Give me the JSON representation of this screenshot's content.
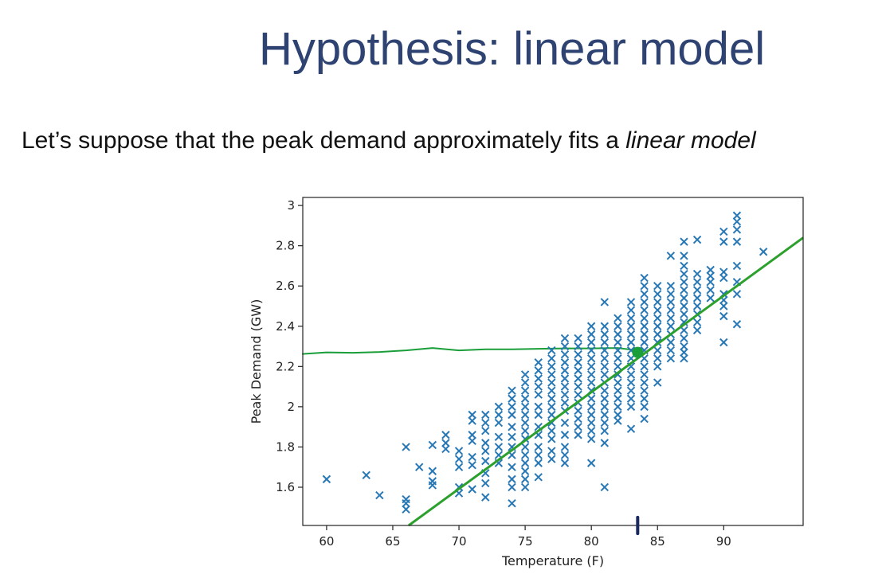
{
  "slide": {
    "title": "Hypothesis: linear model",
    "body_prefix": "Let’s suppose that the peak demand approximately fits a ",
    "body_emphasis": "linear model"
  },
  "chart_data": {
    "type": "scatter",
    "xlabel": "Temperature (F)",
    "ylabel": "Peak Demand (GW)",
    "xlim": [
      58.2,
      96.0
    ],
    "ylim": [
      1.41,
      3.04
    ],
    "xticks": [
      60,
      65,
      70,
      75,
      80,
      85,
      90
    ],
    "yticks": [
      1.6,
      1.8,
      2.0,
      2.2,
      2.4,
      2.6,
      2.8,
      3.0
    ],
    "grid": false,
    "marker": "x",
    "colors": {
      "points": "#2878b5",
      "fit": "#2ca02c",
      "annotation": "#1a9e3a",
      "pen": "#1a2a5e"
    },
    "points": [
      [
        60,
        1.64
      ],
      [
        63,
        1.66
      ],
      [
        64,
        1.56
      ],
      [
        66,
        1.8
      ],
      [
        66,
        1.54
      ],
      [
        66,
        1.52
      ],
      [
        66,
        1.49
      ],
      [
        67,
        1.7
      ],
      [
        68,
        1.81
      ],
      [
        68,
        1.68
      ],
      [
        68,
        1.63
      ],
      [
        68,
        1.61
      ],
      [
        69,
        1.86
      ],
      [
        69,
        1.82
      ],
      [
        69,
        1.79
      ],
      [
        70,
        1.78
      ],
      [
        70,
        1.74
      ],
      [
        70,
        1.7
      ],
      [
        70,
        1.6
      ],
      [
        70,
        1.57
      ],
      [
        71,
        1.96
      ],
      [
        71,
        1.93
      ],
      [
        71,
        1.86
      ],
      [
        71,
        1.83
      ],
      [
        71,
        1.75
      ],
      [
        71,
        1.71
      ],
      [
        71,
        1.59
      ],
      [
        72,
        1.96
      ],
      [
        72,
        1.92
      ],
      [
        72,
        1.88
      ],
      [
        72,
        1.82
      ],
      [
        72,
        1.78
      ],
      [
        72,
        1.73
      ],
      [
        72,
        1.67
      ],
      [
        72,
        1.62
      ],
      [
        72,
        1.55
      ],
      [
        73,
        2.0
      ],
      [
        73,
        1.96
      ],
      [
        73,
        1.92
      ],
      [
        73,
        1.85
      ],
      [
        73,
        1.8
      ],
      [
        73,
        1.76
      ],
      [
        73,
        1.72
      ],
      [
        74,
        2.08
      ],
      [
        74,
        2.04
      ],
      [
        74,
        2.0
      ],
      [
        74,
        1.96
      ],
      [
        74,
        1.9
      ],
      [
        74,
        1.85
      ],
      [
        74,
        1.8
      ],
      [
        74,
        1.76
      ],
      [
        74,
        1.7
      ],
      [
        74,
        1.64
      ],
      [
        74,
        1.6
      ],
      [
        74,
        1.52
      ],
      [
        75,
        2.16
      ],
      [
        75,
        2.12
      ],
      [
        75,
        2.08
      ],
      [
        75,
        2.04
      ],
      [
        75,
        2.0
      ],
      [
        75,
        1.96
      ],
      [
        75,
        1.92
      ],
      [
        75,
        1.88
      ],
      [
        75,
        1.84
      ],
      [
        75,
        1.8
      ],
      [
        75,
        1.76
      ],
      [
        75,
        1.72
      ],
      [
        75,
        1.68
      ],
      [
        75,
        1.64
      ],
      [
        75,
        1.6
      ],
      [
        76,
        2.22
      ],
      [
        76,
        2.18
      ],
      [
        76,
        2.14
      ],
      [
        76,
        2.1
      ],
      [
        76,
        2.06
      ],
      [
        76,
        2.0
      ],
      [
        76,
        1.96
      ],
      [
        76,
        1.9
      ],
      [
        76,
        1.86
      ],
      [
        76,
        1.8
      ],
      [
        76,
        1.76
      ],
      [
        76,
        1.72
      ],
      [
        76,
        1.65
      ],
      [
        77,
        2.28
      ],
      [
        77,
        2.24
      ],
      [
        77,
        2.2
      ],
      [
        77,
        2.16
      ],
      [
        77,
        2.12
      ],
      [
        77,
        2.08
      ],
      [
        77,
        2.04
      ],
      [
        77,
        2.0
      ],
      [
        77,
        1.96
      ],
      [
        77,
        1.92
      ],
      [
        77,
        1.88
      ],
      [
        77,
        1.84
      ],
      [
        77,
        1.78
      ],
      [
        77,
        1.74
      ],
      [
        78,
        2.34
      ],
      [
        78,
        2.3
      ],
      [
        78,
        2.26
      ],
      [
        78,
        2.22
      ],
      [
        78,
        2.18
      ],
      [
        78,
        2.14
      ],
      [
        78,
        2.1
      ],
      [
        78,
        2.06
      ],
      [
        78,
        2.02
      ],
      [
        78,
        1.98
      ],
      [
        78,
        1.92
      ],
      [
        78,
        1.86
      ],
      [
        78,
        1.8
      ],
      [
        78,
        1.76
      ],
      [
        78,
        1.72
      ],
      [
        79,
        2.34
      ],
      [
        79,
        2.3
      ],
      [
        79,
        2.26
      ],
      [
        79,
        2.22
      ],
      [
        79,
        2.18
      ],
      [
        79,
        2.14
      ],
      [
        79,
        2.1
      ],
      [
        79,
        2.06
      ],
      [
        79,
        2.02
      ],
      [
        79,
        1.98
      ],
      [
        79,
        1.94
      ],
      [
        79,
        1.9
      ],
      [
        79,
        1.86
      ],
      [
        80,
        2.4
      ],
      [
        80,
        2.36
      ],
      [
        80,
        2.32
      ],
      [
        80,
        2.28
      ],
      [
        80,
        2.24
      ],
      [
        80,
        2.2
      ],
      [
        80,
        2.16
      ],
      [
        80,
        2.12
      ],
      [
        80,
        2.08
      ],
      [
        80,
        2.04
      ],
      [
        80,
        2.0
      ],
      [
        80,
        1.96
      ],
      [
        80,
        1.92
      ],
      [
        80,
        1.88
      ],
      [
        80,
        1.84
      ],
      [
        80,
        1.72
      ],
      [
        81,
        2.52
      ],
      [
        81,
        2.4
      ],
      [
        81,
        2.36
      ],
      [
        81,
        2.32
      ],
      [
        81,
        2.28
      ],
      [
        81,
        2.24
      ],
      [
        81,
        2.2
      ],
      [
        81,
        2.16
      ],
      [
        81,
        2.12
      ],
      [
        81,
        2.08
      ],
      [
        81,
        2.04
      ],
      [
        81,
        2.0
      ],
      [
        81,
        1.96
      ],
      [
        81,
        1.92
      ],
      [
        81,
        1.88
      ],
      [
        81,
        1.82
      ],
      [
        81,
        1.6
      ],
      [
        82,
        2.44
      ],
      [
        82,
        2.4
      ],
      [
        82,
        2.36
      ],
      [
        82,
        2.32
      ],
      [
        82,
        2.28
      ],
      [
        82,
        2.24
      ],
      [
        82,
        2.2
      ],
      [
        82,
        2.16
      ],
      [
        82,
        2.12
      ],
      [
        82,
        2.08
      ],
      [
        82,
        2.04
      ],
      [
        82,
        2.0
      ],
      [
        82,
        1.96
      ],
      [
        82,
        1.93
      ],
      [
        83,
        2.52
      ],
      [
        83,
        2.48
      ],
      [
        83,
        2.44
      ],
      [
        83,
        2.4
      ],
      [
        83,
        2.36
      ],
      [
        83,
        2.32
      ],
      [
        83,
        2.28
      ],
      [
        83,
        2.24
      ],
      [
        83,
        2.2
      ],
      [
        83,
        2.16
      ],
      [
        83,
        2.12
      ],
      [
        83,
        2.08
      ],
      [
        83,
        2.04
      ],
      [
        83,
        2.0
      ],
      [
        83,
        1.89
      ],
      [
        84,
        2.64
      ],
      [
        84,
        2.6
      ],
      [
        84,
        2.56
      ],
      [
        84,
        2.52
      ],
      [
        84,
        2.48
      ],
      [
        84,
        2.44
      ],
      [
        84,
        2.4
      ],
      [
        84,
        2.36
      ],
      [
        84,
        2.32
      ],
      [
        84,
        2.28
      ],
      [
        84,
        2.24
      ],
      [
        84,
        2.2
      ],
      [
        84,
        2.16
      ],
      [
        84,
        2.12
      ],
      [
        84,
        2.08
      ],
      [
        84,
        2.04
      ],
      [
        84,
        2.0
      ],
      [
        84,
        1.94
      ],
      [
        85,
        2.6
      ],
      [
        85,
        2.56
      ],
      [
        85,
        2.52
      ],
      [
        85,
        2.48
      ],
      [
        85,
        2.44
      ],
      [
        85,
        2.4
      ],
      [
        85,
        2.36
      ],
      [
        85,
        2.32
      ],
      [
        85,
        2.28
      ],
      [
        85,
        2.24
      ],
      [
        85,
        2.2
      ],
      [
        85,
        2.12
      ],
      [
        86,
        2.75
      ],
      [
        86,
        2.6
      ],
      [
        86,
        2.56
      ],
      [
        86,
        2.52
      ],
      [
        86,
        2.48
      ],
      [
        86,
        2.44
      ],
      [
        86,
        2.4
      ],
      [
        86,
        2.36
      ],
      [
        86,
        2.32
      ],
      [
        86,
        2.28
      ],
      [
        86,
        2.24
      ],
      [
        87,
        2.82
      ],
      [
        87,
        2.75
      ],
      [
        87,
        2.7
      ],
      [
        87,
        2.66
      ],
      [
        87,
        2.62
      ],
      [
        87,
        2.58
      ],
      [
        87,
        2.54
      ],
      [
        87,
        2.5
      ],
      [
        87,
        2.46
      ],
      [
        87,
        2.42
      ],
      [
        87,
        2.38
      ],
      [
        87,
        2.34
      ],
      [
        87,
        2.3
      ],
      [
        87,
        2.27
      ],
      [
        87,
        2.24
      ],
      [
        88,
        2.83
      ],
      [
        88,
        2.66
      ],
      [
        88,
        2.62
      ],
      [
        88,
        2.58
      ],
      [
        88,
        2.54
      ],
      [
        88,
        2.5
      ],
      [
        88,
        2.46
      ],
      [
        88,
        2.42
      ],
      [
        88,
        2.38
      ],
      [
        89,
        2.68
      ],
      [
        89,
        2.65
      ],
      [
        89,
        2.62
      ],
      [
        89,
        2.58
      ],
      [
        89,
        2.54
      ],
      [
        90,
        2.87
      ],
      [
        90,
        2.82
      ],
      [
        90,
        2.67
      ],
      [
        90,
        2.64
      ],
      [
        90,
        2.56
      ],
      [
        90,
        2.53
      ],
      [
        90,
        2.5
      ],
      [
        90,
        2.45
      ],
      [
        90,
        2.32
      ],
      [
        91,
        2.95
      ],
      [
        91,
        2.92
      ],
      [
        91,
        2.88
      ],
      [
        91,
        2.82
      ],
      [
        91,
        2.7
      ],
      [
        91,
        2.62
      ],
      [
        91,
        2.56
      ],
      [
        91,
        2.41
      ],
      [
        93,
        2.77
      ]
    ],
    "fit_line": {
      "x": [
        66.2,
        96.0
      ],
      "y": [
        1.41,
        2.84
      ]
    },
    "annotation_curve": {
      "x": [
        58.2,
        60,
        62,
        64,
        66,
        68,
        70,
        72,
        74,
        76,
        78,
        80,
        82,
        83.5
      ],
      "y": [
        2.262,
        2.27,
        2.268,
        2.272,
        2.28,
        2.292,
        2.28,
        2.285,
        2.285,
        2.288,
        2.29,
        2.29,
        2.292,
        2.28
      ]
    },
    "annotation_point": {
      "x": 83.5,
      "y": 2.27
    },
    "pen_mark": {
      "x": 83.5,
      "y_from": 1.37,
      "y_to": 1.45
    }
  }
}
